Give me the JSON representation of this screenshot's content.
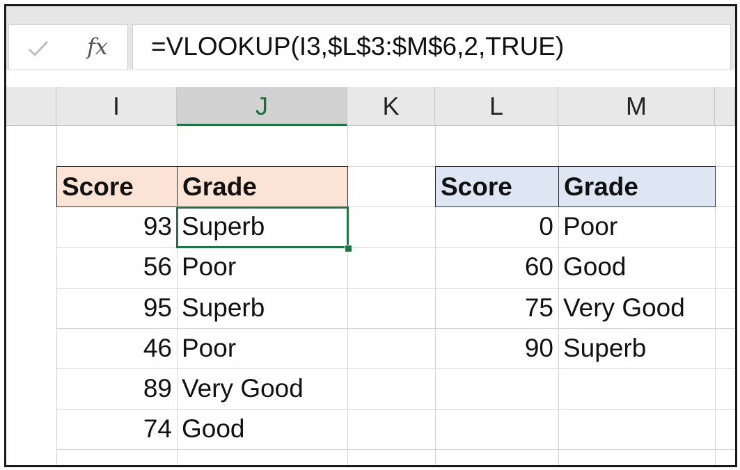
{
  "formula_bar": {
    "check_icon": "check-icon",
    "fx_label": "fx",
    "formula": "=VLOOKUP(I3,$L$3:$M$6,2,TRUE)"
  },
  "columns": [
    "I",
    "J",
    "K",
    "L",
    "M"
  ],
  "selected_column": "J",
  "left_table": {
    "headers": [
      "Score",
      "Grade"
    ],
    "rows": [
      [
        "93",
        "Superb"
      ],
      [
        "56",
        "Poor"
      ],
      [
        "95",
        "Superb"
      ],
      [
        "46",
        "Poor"
      ],
      [
        "89",
        "Very Good"
      ],
      [
        "74",
        "Good"
      ]
    ],
    "header_color": "#fbe4d5"
  },
  "right_table": {
    "headers": [
      "Score",
      "Grade"
    ],
    "rows": [
      [
        "0",
        "Poor"
      ],
      [
        "60",
        "Good"
      ],
      [
        "75",
        "Very Good"
      ],
      [
        "90",
        "Superb"
      ]
    ],
    "header_color": "#dde6f2"
  },
  "accent_color": "#217346"
}
